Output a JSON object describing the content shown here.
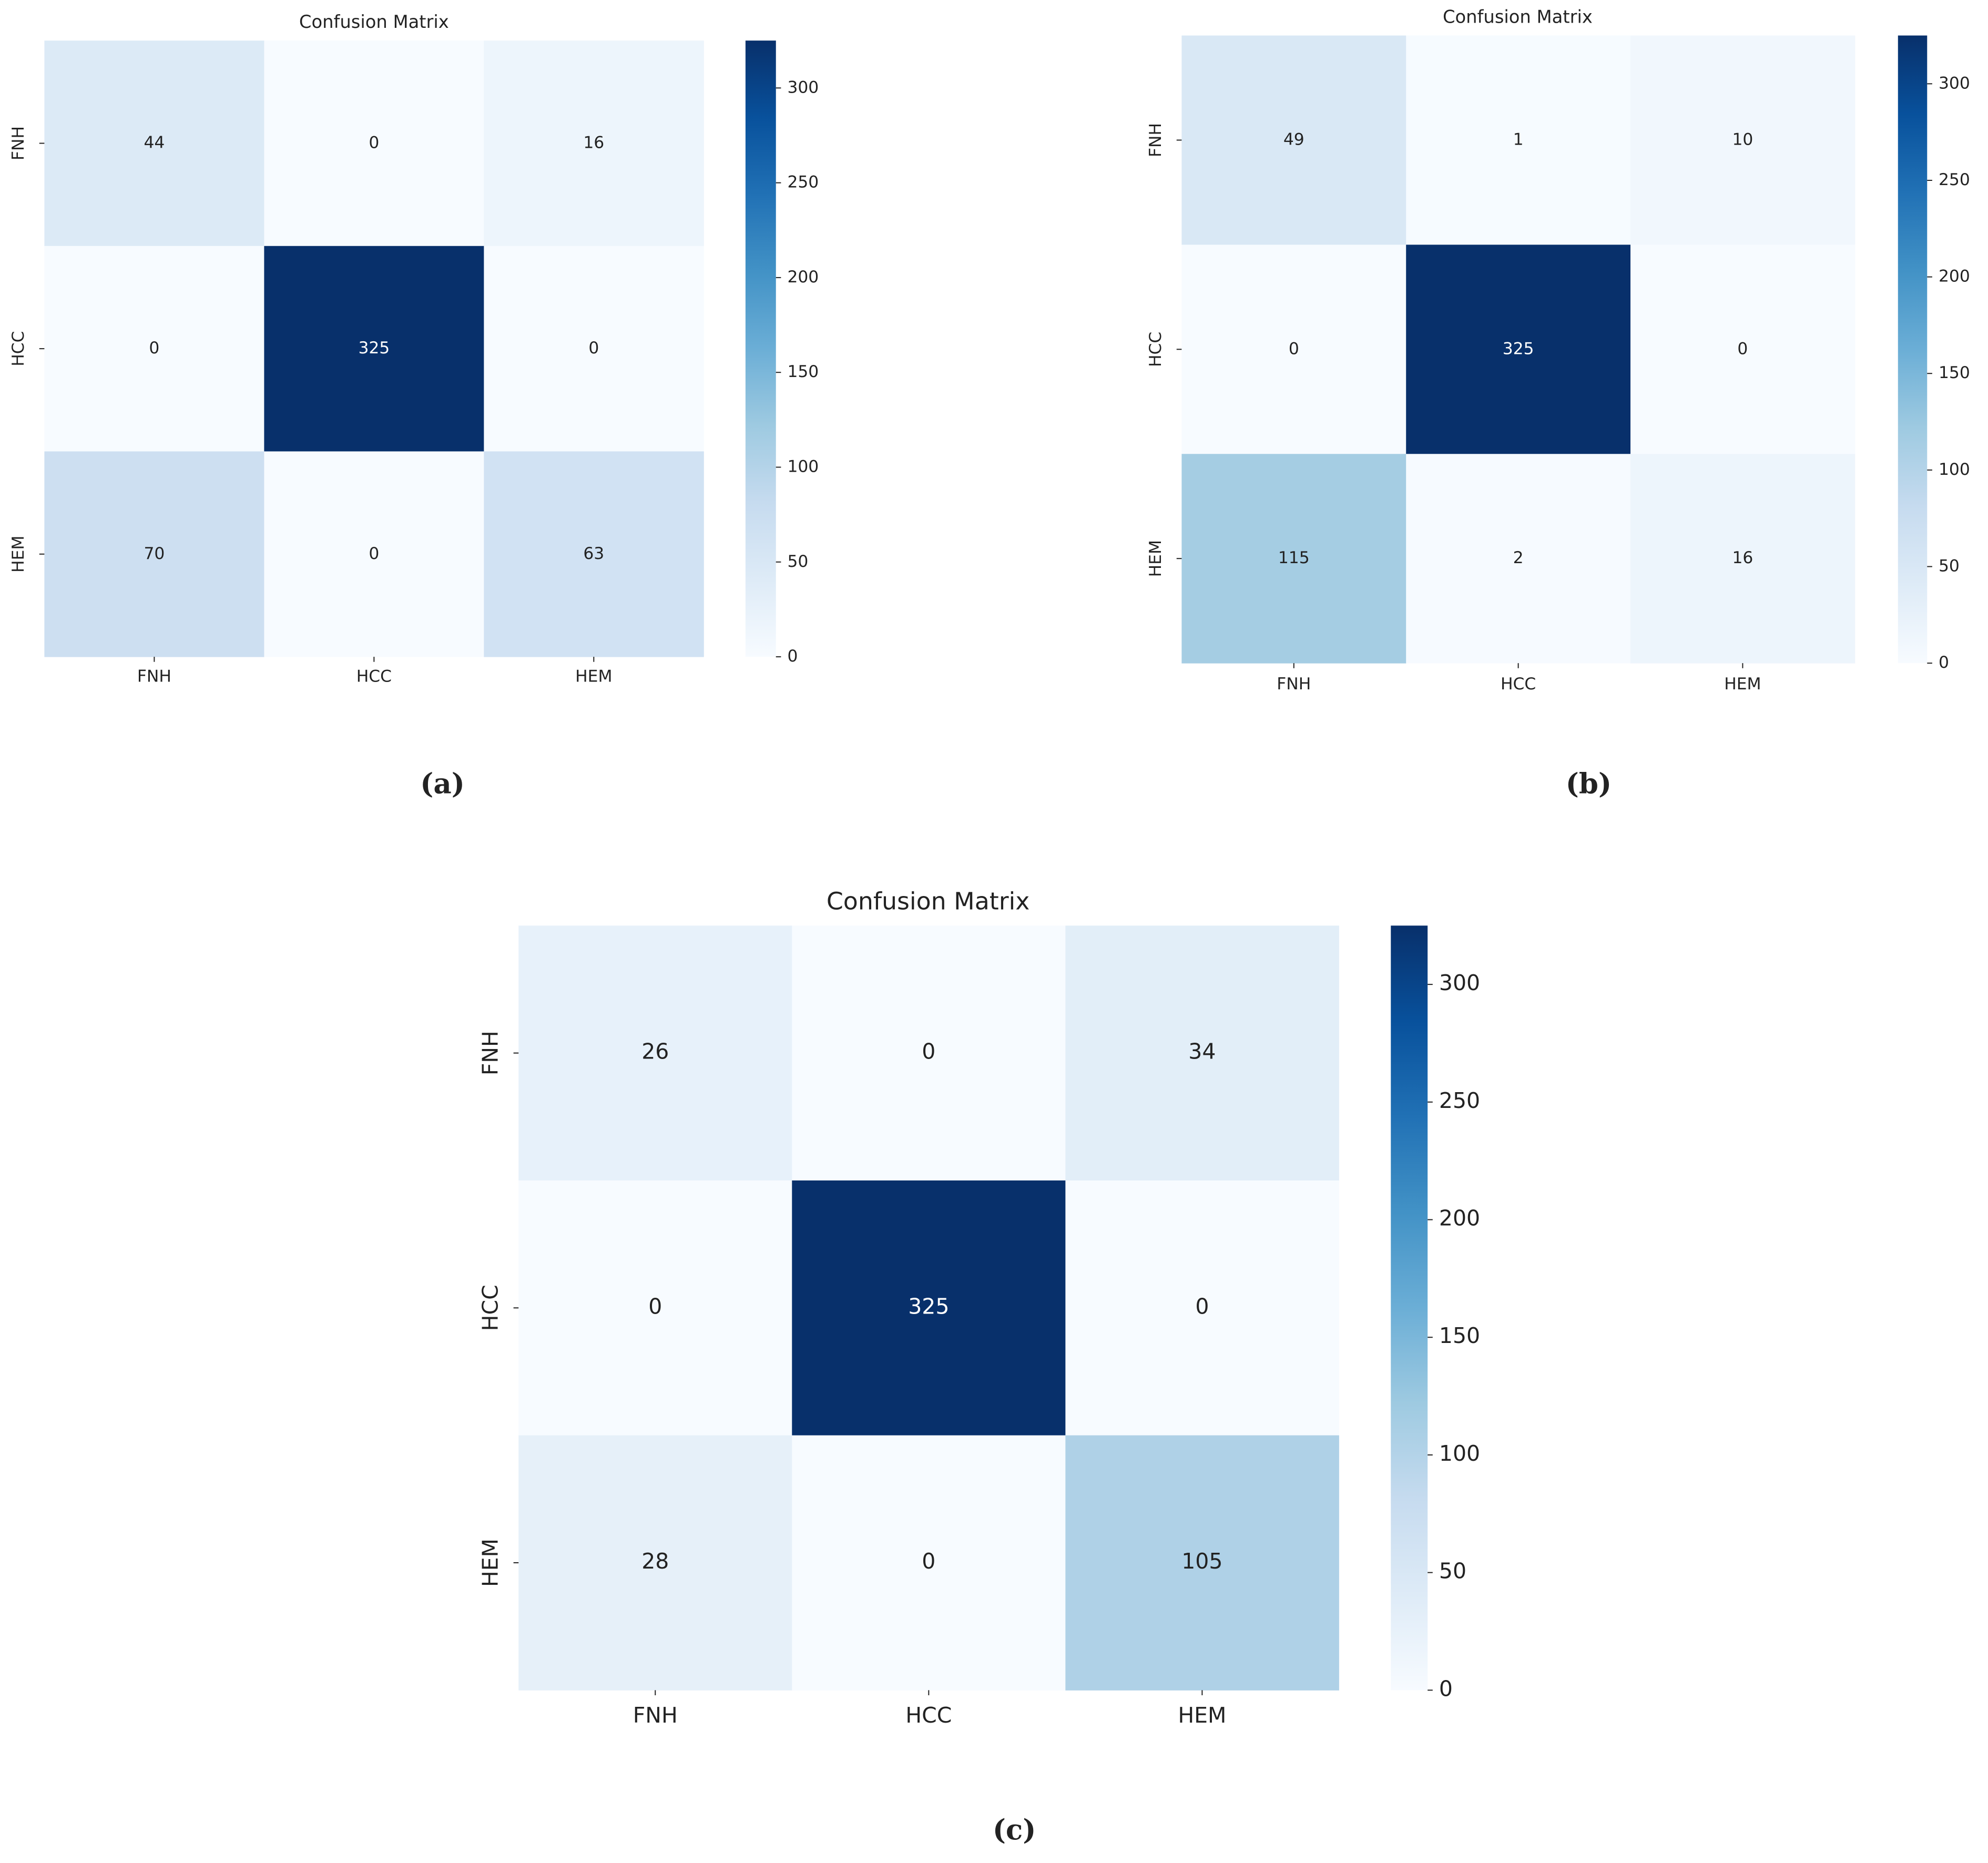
{
  "chart_data": [
    {
      "type": "heatmap",
      "title": "Confusion Matrix",
      "caption": "(a)",
      "x_categories": [
        "FNH",
        "HCC",
        "HEM"
      ],
      "y_categories": [
        "FNH",
        "HCC",
        "HEM"
      ],
      "values": [
        [
          44,
          0,
          16
        ],
        [
          0,
          325,
          0
        ],
        [
          70,
          0,
          63
        ]
      ],
      "zlim": [
        0,
        325
      ],
      "zticks": [
        0,
        50,
        100,
        150,
        200,
        250,
        300
      ],
      "colorscale": [
        "#f7fbff",
        "#deebf7",
        "#c6dbef",
        "#9ecae1",
        "#6baed6",
        "#4292c6",
        "#2171b5",
        "#08519c",
        "#08306b"
      ]
    },
    {
      "type": "heatmap",
      "title": "Confusion Matrix",
      "caption": "(b)",
      "x_categories": [
        "FNH",
        "HCC",
        "HEM"
      ],
      "y_categories": [
        "FNH",
        "HCC",
        "HEM"
      ],
      "values": [
        [
          49,
          1,
          10
        ],
        [
          0,
          325,
          0
        ],
        [
          115,
          2,
          16
        ]
      ],
      "zlim": [
        0,
        325
      ],
      "zticks": [
        0,
        50,
        100,
        150,
        200,
        250,
        300
      ],
      "colorscale": [
        "#f7fbff",
        "#deebf7",
        "#c6dbef",
        "#9ecae1",
        "#6baed6",
        "#4292c6",
        "#2171b5",
        "#08519c",
        "#08306b"
      ]
    },
    {
      "type": "heatmap",
      "title": "Confusion Matrix",
      "caption": "(c)",
      "x_categories": [
        "FNH",
        "HCC",
        "HEM"
      ],
      "y_categories": [
        "FNH",
        "HCC",
        "HEM"
      ],
      "values": [
        [
          26,
          0,
          34
        ],
        [
          0,
          325,
          0
        ],
        [
          28,
          0,
          105
        ]
      ],
      "zlim": [
        0,
        325
      ],
      "zticks": [
        0,
        50,
        100,
        150,
        200,
        250,
        300
      ],
      "colorscale": [
        "#f7fbff",
        "#deebf7",
        "#c6dbef",
        "#9ecae1",
        "#6baed6",
        "#4292c6",
        "#2171b5",
        "#08519c",
        "#08306b"
      ]
    }
  ]
}
